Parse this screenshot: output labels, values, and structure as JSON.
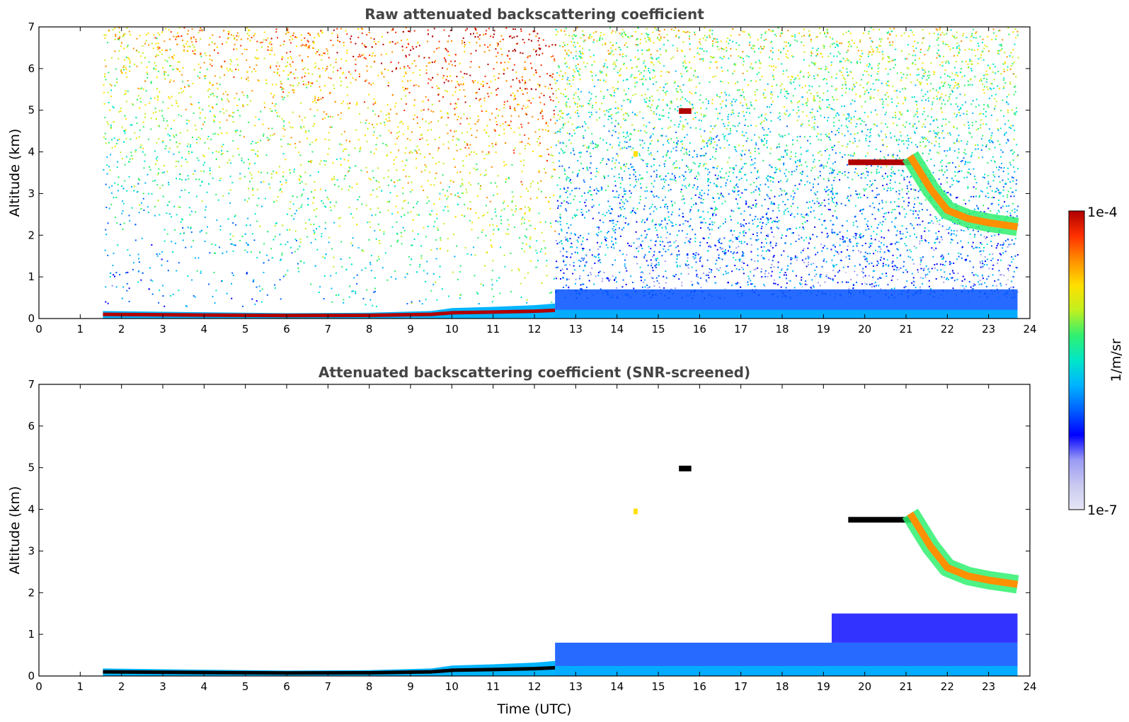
{
  "chart_data": [
    {
      "type": "heatmap",
      "title": "Raw attenuated backscattering coefficient",
      "xlabel": "",
      "ylabel": "Altitude (km)",
      "xlim": [
        0,
        24
      ],
      "ylim": [
        0,
        7
      ],
      "xticks": [
        "0",
        "1",
        "2",
        "3",
        "4",
        "5",
        "6",
        "7",
        "8",
        "9",
        "10",
        "11",
        "12",
        "13",
        "14",
        "15",
        "16",
        "17",
        "18",
        "19",
        "20",
        "21",
        "22",
        "23",
        "24"
      ],
      "yticks": [
        "0",
        "1",
        "2",
        "3",
        "4",
        "5",
        "6",
        "7"
      ],
      "data_start_utc": 1.55,
      "data_end_utc": 23.7,
      "features": [
        {
          "kind": "noise_field",
          "x_start": 1.55,
          "x_end": 12.5,
          "y_start": 0.3,
          "y_end": 7,
          "level": "high-above-3km"
        },
        {
          "kind": "noise_field",
          "x_start": 12.5,
          "x_end": 23.7,
          "y_start": 0.5,
          "y_end": 7,
          "level": "medium"
        },
        {
          "kind": "boundary_layer",
          "x": [
            1.55,
            4,
            6,
            8,
            9.5,
            10,
            11,
            12,
            12.5
          ],
          "top": [
            0.18,
            0.15,
            0.13,
            0.14,
            0.18,
            0.25,
            0.28,
            0.32,
            0.36
          ],
          "intensity": "high"
        },
        {
          "kind": "aerosol_layer",
          "x_start": 12.5,
          "x_end": 23.7,
          "top_km": 0.7,
          "intensity": "low"
        },
        {
          "kind": "cloud",
          "x_start": 19.6,
          "x_end": 21.2,
          "altitude_km": 3.75,
          "intensity": "very-high"
        },
        {
          "kind": "cloud_descending",
          "x": [
            21.1,
            21.6,
            22.0,
            22.5,
            23.0,
            23.7
          ],
          "altitude_km": [
            3.9,
            3.1,
            2.6,
            2.4,
            2.3,
            2.2
          ],
          "intensity": "high"
        },
        {
          "kind": "cloud",
          "x_start": 15.5,
          "x_end": 15.8,
          "altitude_km": 4.98,
          "intensity": "very-high"
        },
        {
          "kind": "cloud",
          "x_start": 14.4,
          "x_end": 14.5,
          "altitude_km": 3.95,
          "intensity": "medium"
        }
      ]
    },
    {
      "type": "heatmap",
      "title": "Attenuated backscattering coefficient (SNR-screened)",
      "xlabel": "Time (UTC)",
      "ylabel": "Altitude (km)",
      "xlim": [
        0,
        24
      ],
      "ylim": [
        0,
        7
      ],
      "xticks": [
        "0",
        "1",
        "2",
        "3",
        "4",
        "5",
        "6",
        "7",
        "8",
        "9",
        "10",
        "11",
        "12",
        "13",
        "14",
        "15",
        "16",
        "17",
        "18",
        "19",
        "20",
        "21",
        "22",
        "23",
        "24"
      ],
      "yticks": [
        "0",
        "1",
        "2",
        "3",
        "4",
        "5",
        "6",
        "7"
      ],
      "features": [
        {
          "kind": "boundary_layer",
          "x": [
            1.55,
            4,
            6,
            8,
            9.5,
            10,
            11,
            12,
            12.5
          ],
          "top": [
            0.18,
            0.15,
            0.13,
            0.14,
            0.18,
            0.25,
            0.28,
            0.32,
            0.36
          ],
          "intensity": "saturated"
        },
        {
          "kind": "aerosol_layer",
          "x_start": 12.5,
          "x_end": 23.7,
          "top_km": 0.8,
          "intensity": "low"
        },
        {
          "kind": "residual_layer",
          "x_start": 19.2,
          "x_end": 23.7,
          "y_start": 0.8,
          "y_end": 1.5,
          "intensity": "low"
        },
        {
          "kind": "cloud",
          "x_start": 19.6,
          "x_end": 21.2,
          "altitude_km": 3.75,
          "intensity": "saturated"
        },
        {
          "kind": "cloud_descending",
          "x": [
            21.1,
            21.6,
            22.0,
            22.5,
            23.0,
            23.7
          ],
          "altitude_km": [
            3.9,
            3.1,
            2.6,
            2.4,
            2.3,
            2.2
          ],
          "intensity": "high"
        },
        {
          "kind": "cloud",
          "x_start": 15.5,
          "x_end": 15.8,
          "altitude_km": 4.98,
          "intensity": "saturated"
        },
        {
          "kind": "cloud",
          "x_start": 14.4,
          "x_end": 14.5,
          "altitude_km": 3.95,
          "intensity": "medium"
        }
      ]
    }
  ],
  "colorbar": {
    "label": "1/m/sr",
    "min_label": "1e-7",
    "max_label": "1e-4",
    "scale": "log",
    "colormap": [
      "#e6e6f5",
      "#c8c8f0",
      "#9a9af5",
      "#0000ff",
      "#0060ff",
      "#00b4ff",
      "#00e6c8",
      "#30f070",
      "#c0f020",
      "#ffe000",
      "#ff9000",
      "#ff3000",
      "#b00000"
    ]
  },
  "colors": {
    "axis": "#000000",
    "title": "#444444",
    "saturated": "#000000"
  }
}
